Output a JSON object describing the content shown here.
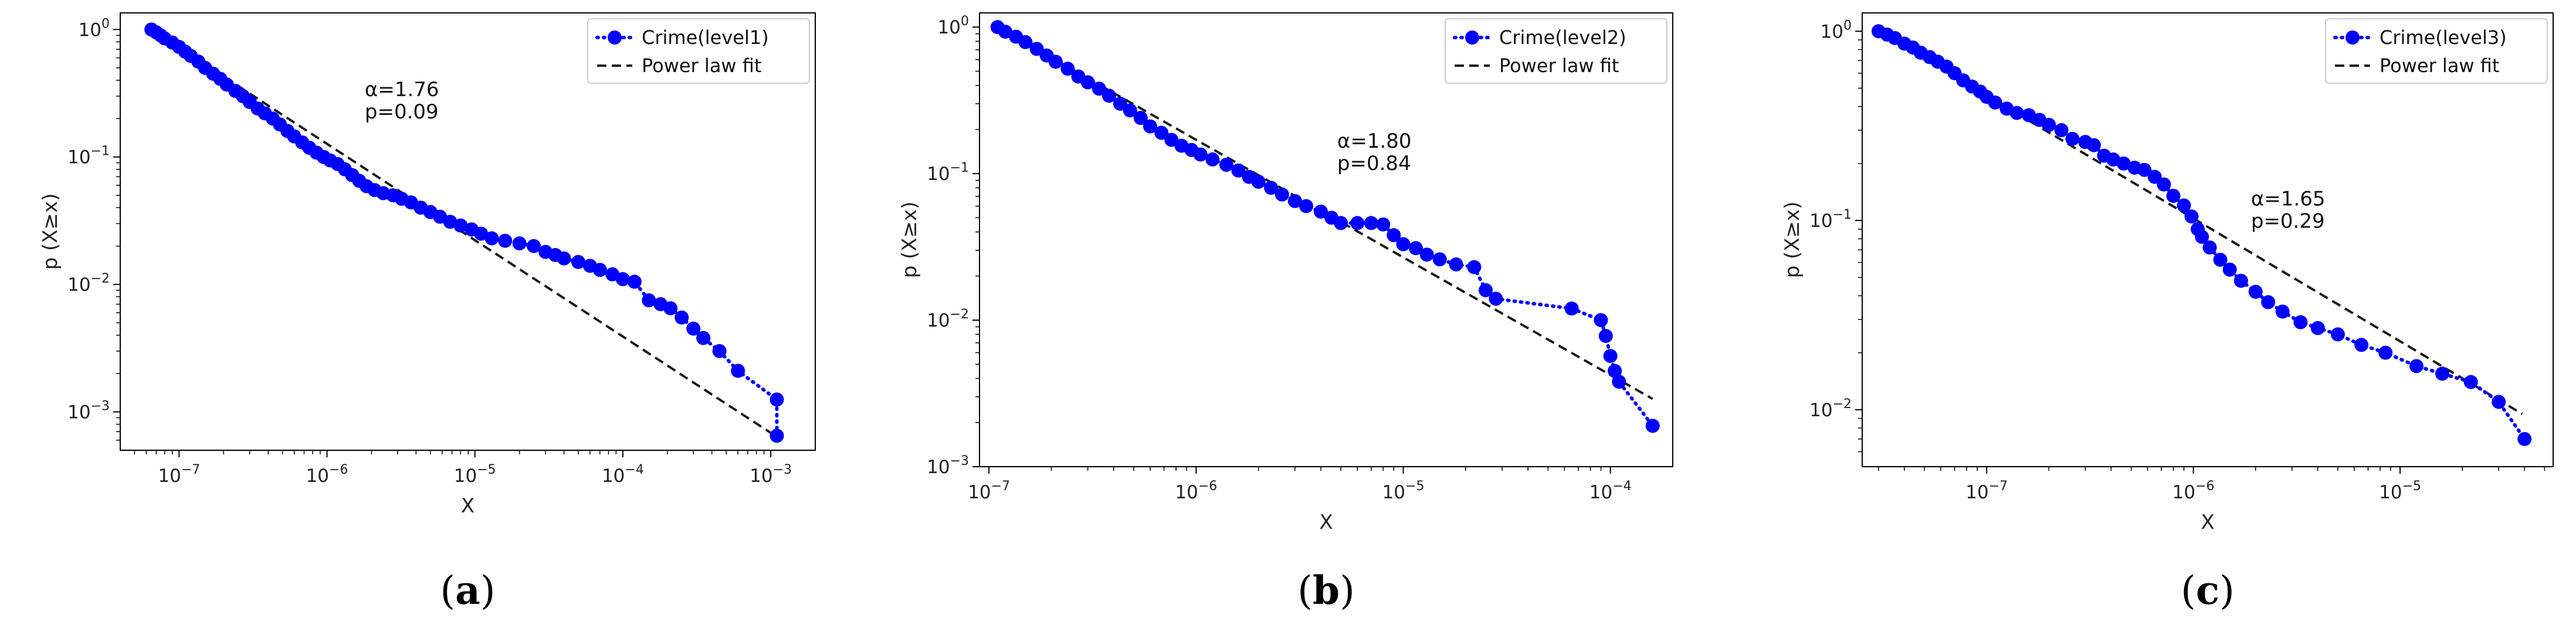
{
  "chart_data": [
    {
      "type": "scatter",
      "title": "",
      "xlabel": "X",
      "ylabel": "p (X≥x)",
      "xscale": "log",
      "yscale": "log",
      "xlim": [
        4e-08,
        0.002
      ],
      "ylim": [
        0.0005,
        1.35
      ],
      "x_ticks": [
        1e-07,
        1e-06,
        1e-05,
        0.0001,
        0.001
      ],
      "x_tick_labels": [
        {
          "base": "10",
          "exp": "−7"
        },
        {
          "base": "10",
          "exp": "−6"
        },
        {
          "base": "10",
          "exp": "−5"
        },
        {
          "base": "10",
          "exp": "−4"
        },
        {
          "base": "10",
          "exp": "−3"
        }
      ],
      "y_ticks": [
        0.001,
        0.01,
        0.1,
        1
      ],
      "y_tick_labels": [
        {
          "base": "10",
          "exp": "−3"
        },
        {
          "base": "10",
          "exp": "−2"
        },
        {
          "base": "10",
          "exp": "−1"
        },
        {
          "base": "10",
          "exp": "0"
        }
      ],
      "legend": {
        "position": "top-right",
        "entries": [
          "Crime(level1)",
          "Power law fit"
        ]
      },
      "annotation": {
        "alpha": "α=1.76",
        "p": "p=0.09",
        "x": 1.8e-06,
        "y": 0.3
      },
      "caption": "a",
      "series": [
        {
          "name": "Crime(level1)",
          "style": "dotted-markers",
          "color": "#0000ff",
          "points": [
            [
              6.5e-08,
              1.0
            ],
            [
              7e-08,
              0.95
            ],
            [
              7.5e-08,
              0.9
            ],
            [
              8e-08,
              0.85
            ],
            [
              9e-08,
              0.79
            ],
            [
              1e-07,
              0.73
            ],
            [
              1.1e-07,
              0.67
            ],
            [
              1.2e-07,
              0.62
            ],
            [
              1.35e-07,
              0.56
            ],
            [
              1.5e-07,
              0.5
            ],
            [
              1.7e-07,
              0.45
            ],
            [
              1.9e-07,
              0.41
            ],
            [
              2.1e-07,
              0.37
            ],
            [
              2.4e-07,
              0.33
            ],
            [
              2.7e-07,
              0.3
            ],
            [
              3e-07,
              0.27
            ],
            [
              3.4e-07,
              0.24
            ],
            [
              3.8e-07,
              0.22
            ],
            [
              4.3e-07,
              0.2
            ],
            [
              4.8e-07,
              0.18
            ],
            [
              5.4e-07,
              0.16
            ],
            [
              6e-07,
              0.145
            ],
            [
              6.8e-07,
              0.13
            ],
            [
              7.6e-07,
              0.118
            ],
            [
              8.5e-07,
              0.108
            ],
            [
              9.5e-07,
              0.1
            ],
            [
              1.05e-06,
              0.094
            ],
            [
              1.18e-06,
              0.088
            ],
            [
              1.32e-06,
              0.08
            ],
            [
              1.48e-06,
              0.072
            ],
            [
              1.65e-06,
              0.065
            ],
            [
              1.85e-06,
              0.059
            ],
            [
              2.1e-06,
              0.055
            ],
            [
              2.4e-06,
              0.052
            ],
            [
              2.8e-06,
              0.05
            ],
            [
              3.2e-06,
              0.047
            ],
            [
              3.7e-06,
              0.044
            ],
            [
              4.3e-06,
              0.04
            ],
            [
              5e-06,
              0.037
            ],
            [
              5.8e-06,
              0.034
            ],
            [
              6.8e-06,
              0.031
            ],
            [
              8e-06,
              0.029
            ],
            [
              9.5e-06,
              0.027
            ],
            [
              1.1e-05,
              0.025
            ],
            [
              1.3e-05,
              0.023
            ],
            [
              1.6e-05,
              0.022
            ],
            [
              2e-05,
              0.021
            ],
            [
              2.5e-05,
              0.02
            ],
            [
              3e-05,
              0.018
            ],
            [
              3.5e-05,
              0.017
            ],
            [
              4e-05,
              0.016
            ],
            [
              5e-05,
              0.015
            ],
            [
              6e-05,
              0.014
            ],
            [
              7e-05,
              0.013
            ],
            [
              8.5e-05,
              0.012
            ],
            [
              0.0001,
              0.011
            ],
            [
              0.00012,
              0.0105
            ],
            [
              0.00015,
              0.0075
            ],
            [
              0.00018,
              0.007
            ],
            [
              0.00021,
              0.0065
            ],
            [
              0.00025,
              0.0055
            ],
            [
              0.0003,
              0.0045
            ],
            [
              0.00035,
              0.0038
            ],
            [
              0.00045,
              0.003
            ],
            [
              0.0006,
              0.0021
            ],
            [
              0.0011,
              0.00125
            ],
            [
              0.0011,
              0.00065
            ]
          ]
        },
        {
          "name": "Power law fit",
          "style": "dashed",
          "color": "#1a1a1a",
          "points": [
            [
              6.5e-08,
              1.0
            ],
            [
              0.00105,
              0.00066
            ]
          ]
        }
      ]
    },
    {
      "type": "scatter",
      "title": "",
      "xlabel": "X",
      "ylabel": "p (X≥x)",
      "xscale": "log",
      "yscale": "log",
      "xlim": [
        9e-08,
        0.0002
      ],
      "ylim": [
        0.001,
        1.25
      ],
      "x_ticks": [
        1e-07,
        1e-06,
        1e-05,
        0.0001
      ],
      "x_tick_labels": [
        {
          "base": "10",
          "exp": "−7"
        },
        {
          "base": "10",
          "exp": "−6"
        },
        {
          "base": "10",
          "exp": "−5"
        },
        {
          "base": "10",
          "exp": "−4"
        }
      ],
      "y_ticks": [
        0.001,
        0.01,
        0.1,
        1
      ],
      "y_tick_labels": [
        {
          "base": "10",
          "exp": "−3"
        },
        {
          "base": "10",
          "exp": "−2"
        },
        {
          "base": "10",
          "exp": "−1"
        },
        {
          "base": "10",
          "exp": "0"
        }
      ],
      "legend": {
        "position": "top-right",
        "entries": [
          "Crime(level2)",
          "Power law fit"
        ]
      },
      "annotation": {
        "alpha": "α=1.80",
        "p": "p=0.84",
        "x": 4.8e-06,
        "y": 0.15
      },
      "caption": "b",
      "series": [
        {
          "name": "Crime(level2)",
          "style": "dotted-markers",
          "color": "#0000ff",
          "points": [
            [
              1.1e-07,
              1.0
            ],
            [
              1.2e-07,
              0.93
            ],
            [
              1.35e-07,
              0.86
            ],
            [
              1.5e-07,
              0.79
            ],
            [
              1.7e-07,
              0.71
            ],
            [
              1.9e-07,
              0.64
            ],
            [
              2.1e-07,
              0.58
            ],
            [
              2.4e-07,
              0.52
            ],
            [
              2.7e-07,
              0.46
            ],
            [
              3e-07,
              0.42
            ],
            [
              3.4e-07,
              0.38
            ],
            [
              3.8e-07,
              0.34
            ],
            [
              4.3e-07,
              0.3
            ],
            [
              4.8e-07,
              0.27
            ],
            [
              5.4e-07,
              0.24
            ],
            [
              6e-07,
              0.21
            ],
            [
              6.8e-07,
              0.19
            ],
            [
              7.6e-07,
              0.17
            ],
            [
              8.5e-07,
              0.155
            ],
            [
              9.5e-07,
              0.145
            ],
            [
              1.05e-06,
              0.135
            ],
            [
              1.2e-06,
              0.125
            ],
            [
              1.4e-06,
              0.115
            ],
            [
              1.6e-06,
              0.105
            ],
            [
              1.8e-06,
              0.095
            ],
            [
              2e-06,
              0.088
            ],
            [
              2.3e-06,
              0.08
            ],
            [
              2.6e-06,
              0.072
            ],
            [
              3e-06,
              0.065
            ],
            [
              3.4e-06,
              0.06
            ],
            [
              4e-06,
              0.055
            ],
            [
              4.5e-06,
              0.05
            ],
            [
              5e-06,
              0.046
            ],
            [
              6e-06,
              0.046
            ],
            [
              7e-06,
              0.046
            ],
            [
              8e-06,
              0.045
            ],
            [
              9e-06,
              0.038
            ],
            [
              1e-05,
              0.033
            ],
            [
              1.15e-05,
              0.031
            ],
            [
              1.3e-05,
              0.028
            ],
            [
              1.5e-05,
              0.026
            ],
            [
              1.8e-05,
              0.024
            ],
            [
              2.2e-05,
              0.023
            ],
            [
              2.5e-05,
              0.016
            ],
            [
              2.8e-05,
              0.014
            ],
            [
              6.5e-05,
              0.012
            ],
            [
              9e-05,
              0.01
            ],
            [
              9.5e-05,
              0.0078
            ],
            [
              0.0001,
              0.0057
            ],
            [
              0.000105,
              0.0045
            ],
            [
              0.00011,
              0.0038
            ],
            [
              0.00016,
              0.0019
            ]
          ]
        },
        {
          "name": "Power law fit",
          "style": "dashed",
          "color": "#1a1a1a",
          "points": [
            [
              1.1e-07,
              1.0
            ],
            [
              0.00016,
              0.0029
            ]
          ]
        }
      ]
    },
    {
      "type": "scatter",
      "title": "",
      "xlabel": "X",
      "ylabel": "p (X≥x)",
      "xscale": "log",
      "yscale": "log",
      "xlim": [
        2.5e-08,
        5.5e-05
      ],
      "ylim": [
        0.005,
        1.25
      ],
      "x_ticks": [
        1e-07,
        1e-06,
        1e-05
      ],
      "x_tick_labels": [
        {
          "base": "10",
          "exp": "−7"
        },
        {
          "base": "10",
          "exp": "−6"
        },
        {
          "base": "10",
          "exp": "−5"
        }
      ],
      "y_ticks": [
        0.01,
        0.1,
        1
      ],
      "y_tick_labels": [
        {
          "base": "10",
          "exp": "−2"
        },
        {
          "base": "10",
          "exp": "−1"
        },
        {
          "base": "10",
          "exp": "0"
        }
      ],
      "legend": {
        "position": "top-right",
        "entries": [
          "Crime(level3)",
          "Power law fit"
        ]
      },
      "annotation": {
        "alpha": "α=1.65",
        "p": "p=0.29",
        "x": 1.9e-06,
        "y": 0.12
      },
      "caption": "c",
      "series": [
        {
          "name": "Crime(level3)",
          "style": "dotted-markers",
          "color": "#0000ff",
          "points": [
            [
              3e-08,
              1.0
            ],
            [
              3.3e-08,
              0.96
            ],
            [
              3.6e-08,
              0.92
            ],
            [
              4e-08,
              0.86
            ],
            [
              4.4e-08,
              0.82
            ],
            [
              4.8e-08,
              0.77
            ],
            [
              5.3e-08,
              0.73
            ],
            [
              5.8e-08,
              0.69
            ],
            [
              6.4e-08,
              0.65
            ],
            [
              7e-08,
              0.6
            ],
            [
              7.7e-08,
              0.55
            ],
            [
              8.5e-08,
              0.51
            ],
            [
              9.3e-08,
              0.48
            ],
            [
              1e-07,
              0.45
            ],
            [
              1.1e-07,
              0.42
            ],
            [
              1.25e-07,
              0.39
            ],
            [
              1.4e-07,
              0.37
            ],
            [
              1.6e-07,
              0.36
            ],
            [
              1.8e-07,
              0.34
            ],
            [
              2e-07,
              0.32
            ],
            [
              2.3e-07,
              0.3
            ],
            [
              2.6e-07,
              0.27
            ],
            [
              3e-07,
              0.26
            ],
            [
              3.3e-07,
              0.25
            ],
            [
              3.7e-07,
              0.22
            ],
            [
              4.1e-07,
              0.21
            ],
            [
              4.6e-07,
              0.2
            ],
            [
              5.2e-07,
              0.19
            ],
            [
              5.8e-07,
              0.185
            ],
            [
              6.5e-07,
              0.17
            ],
            [
              7.2e-07,
              0.155
            ],
            [
              8e-07,
              0.135
            ],
            [
              9e-07,
              0.12
            ],
            [
              9.8e-07,
              0.105
            ],
            [
              1.05e-06,
              0.09
            ],
            [
              1.1e-06,
              0.082
            ],
            [
              1.2e-06,
              0.072
            ],
            [
              1.35e-06,
              0.062
            ],
            [
              1.5e-06,
              0.055
            ],
            [
              1.7e-06,
              0.048
            ],
            [
              2e-06,
              0.042
            ],
            [
              2.3e-06,
              0.037
            ],
            [
              2.7e-06,
              0.033
            ],
            [
              3.3e-06,
              0.029
            ],
            [
              4e-06,
              0.027
            ],
            [
              5e-06,
              0.025
            ],
            [
              6.5e-06,
              0.022
            ],
            [
              8.5e-06,
              0.02
            ],
            [
              1.2e-05,
              0.017
            ],
            [
              1.6e-05,
              0.0155
            ],
            [
              2.2e-05,
              0.014
            ],
            [
              3e-05,
              0.011
            ],
            [
              4e-05,
              0.007
            ]
          ]
        },
        {
          "name": "Power law fit",
          "style": "dashed",
          "color": "#1a1a1a",
          "points": [
            [
              3e-08,
              1.0
            ],
            [
              3.9e-05,
              0.0095
            ]
          ]
        }
      ]
    }
  ]
}
